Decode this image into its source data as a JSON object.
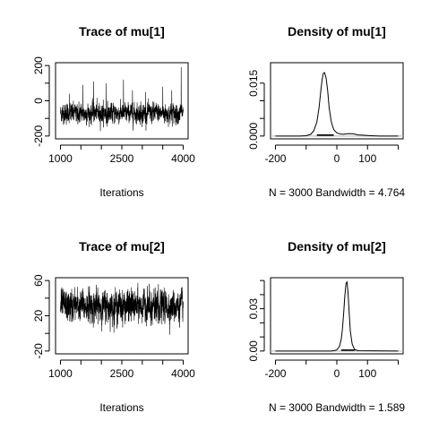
{
  "chart_data": [
    {
      "type": "line",
      "title": "Trace of mu[1]",
      "xlabel": "Iterations",
      "ylabel": "",
      "x_ticks": [
        1000,
        2500,
        4000
      ],
      "y_ticks": [
        -200,
        0,
        200
      ],
      "x_minor_ticks": [
        1500,
        2000,
        3000,
        3500
      ],
      "y_minor_ticks": [
        -100,
        100
      ],
      "xlim": [
        1000,
        4000
      ],
      "ylim": [
        -200,
        200
      ],
      "n_iterations": 3000,
      "mean": -70,
      "sd": 25,
      "spikes": [
        [
          1220,
          40
        ],
        [
          1550,
          90
        ],
        [
          1810,
          110
        ],
        [
          2120,
          100
        ],
        [
          2540,
          120
        ],
        [
          2760,
          60
        ],
        [
          3080,
          50
        ],
        [
          3500,
          80
        ],
        [
          3720,
          60
        ],
        [
          3950,
          190
        ]
      ]
    },
    {
      "type": "line",
      "title": "Density of mu[1]",
      "xlabel": "N = 3000   Bandwidth = 4.764",
      "ylabel": "",
      "x_ticks": [
        -200,
        0,
        100
      ],
      "y_ticks": [
        0.0,
        0.015
      ],
      "x_minor_ticks": [
        -100,
        200
      ],
      "y_minor_ticks": [
        0.005,
        0.01
      ],
      "xlim": [
        -200,
        200
      ],
      "ylim": [
        0,
        0.02
      ],
      "x": [
        -200,
        -120,
        -100,
        -85,
        -75,
        -65,
        -58,
        -52,
        -48,
        -44,
        -40,
        -35,
        -30,
        -25,
        -18,
        -10,
        0,
        10,
        20,
        40,
        55,
        70,
        90,
        110,
        140,
        200
      ],
      "y": [
        0.0,
        0.0,
        0.0001,
        0.0005,
        0.0015,
        0.004,
        0.008,
        0.013,
        0.016,
        0.0178,
        0.018,
        0.0165,
        0.013,
        0.008,
        0.004,
        0.0018,
        0.0009,
        0.0006,
        0.0005,
        0.0007,
        0.0006,
        0.0003,
        0.0002,
        0.0001,
        0.0,
        0.0
      ]
    },
    {
      "type": "line",
      "title": "Trace of mu[2]",
      "xlabel": "Iterations",
      "ylabel": "",
      "x_ticks": [
        1000,
        2500,
        4000
      ],
      "y_ticks": [
        -20,
        20,
        60
      ],
      "x_minor_ticks": [
        1500,
        2000,
        3000,
        3500
      ],
      "y_minor_ticks": [
        0,
        40
      ],
      "xlim": [
        1000,
        4000
      ],
      "ylim": [
        -20,
        60
      ],
      "n_iterations": 3000,
      "mean": 31,
      "sd": 8,
      "spikes": []
    },
    {
      "type": "line",
      "title": "Density of mu[2]",
      "xlabel": "N = 3000   Bandwidth = 1.589",
      "ylabel": "",
      "x_ticks": [
        -200,
        0,
        100
      ],
      "y_ticks": [
        0.0,
        0.03
      ],
      "x_minor_ticks": [
        -100,
        200
      ],
      "y_minor_ticks": [
        0.01,
        0.02,
        0.04,
        0.05
      ],
      "xlim": [
        -200,
        200
      ],
      "ylim": [
        0,
        0.05
      ],
      "x": [
        -200,
        -20,
        -10,
        0,
        8,
        14,
        18,
        22,
        26,
        30,
        33,
        36,
        40,
        44,
        50,
        58,
        70,
        200
      ],
      "y": [
        0.0,
        0.0,
        0.0002,
        0.0008,
        0.003,
        0.008,
        0.015,
        0.026,
        0.039,
        0.048,
        0.049,
        0.043,
        0.028,
        0.014,
        0.005,
        0.001,
        0.0002,
        0.0
      ]
    }
  ]
}
